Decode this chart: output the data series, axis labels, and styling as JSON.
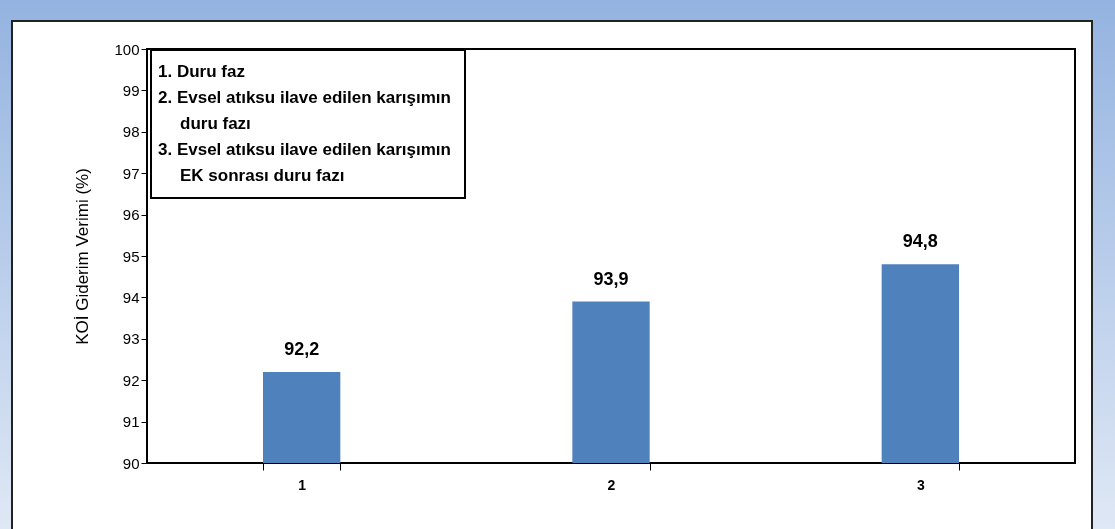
{
  "chart_data": {
    "type": "bar",
    "ylabel": "KOİ Giderim Verimi (%)",
    "categories": [
      "1",
      "2",
      "3"
    ],
    "values": [
      92.2,
      93.9,
      94.8
    ],
    "value_labels": [
      "92,2",
      "93,9",
      "94,8"
    ],
    "color": "#4f81bd",
    "ylim": [
      90,
      100
    ],
    "yticks": [
      90,
      91,
      92,
      93,
      94,
      95,
      96,
      97,
      98,
      99,
      100
    ],
    "grid": false,
    "annotations": [
      "1. Duru faz",
      "2. Evsel atıksu ilave edilen karışımın duru fazı",
      "3. Evsel atıksu ilave edilen karışımın EK sonrası duru fazı"
    ]
  }
}
